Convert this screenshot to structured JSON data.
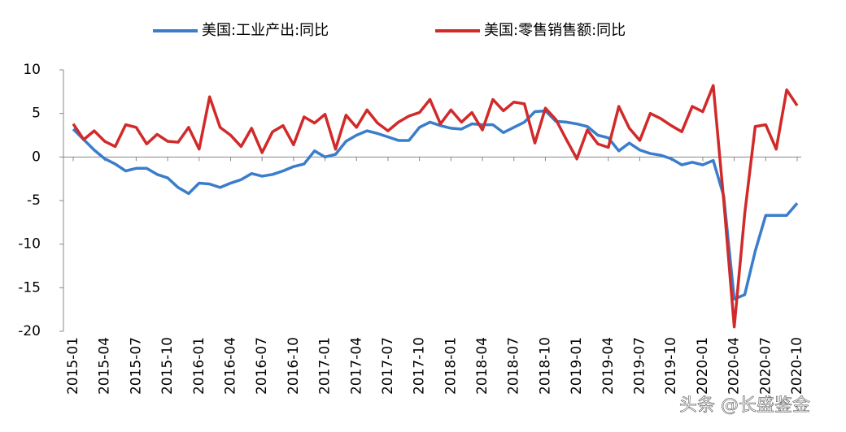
{
  "chart_data": {
    "type": "line",
    "categories": [
      "2015-01",
      null,
      null,
      "2015-04",
      null,
      null,
      "2015-07",
      null,
      null,
      "2015-10",
      null,
      null,
      "2016-01",
      null,
      null,
      "2016-04",
      null,
      null,
      "2016-07",
      null,
      null,
      "2016-10",
      null,
      null,
      "2017-01",
      null,
      null,
      "2017-04",
      null,
      null,
      "2017-07",
      null,
      null,
      "2017-10",
      null,
      null,
      "2018-01",
      null,
      null,
      "2018-04",
      null,
      null,
      "2018-07",
      null,
      null,
      "2018-10",
      null,
      null,
      "2019-01",
      null,
      null,
      "2019-04",
      null,
      null,
      "2019-07",
      null,
      null,
      "2019-10",
      null,
      null,
      "2020-01",
      null,
      null,
      "2020-04",
      null,
      null,
      "2020-07",
      null,
      null,
      "2020-10"
    ],
    "series": [
      {
        "name": "美国:工业产出:同比",
        "color": "#3a7dcb",
        "values": [
          3.2,
          2.0,
          0.8,
          -0.2,
          -0.8,
          -1.6,
          -1.3,
          -1.3,
          -2.0,
          -2.4,
          -3.5,
          -4.2,
          -3.0,
          -3.1,
          -3.5,
          -3.0,
          -2.6,
          -1.9,
          -2.2,
          -2.0,
          -1.6,
          -1.1,
          -0.8,
          0.7,
          0.0,
          0.3,
          1.8,
          2.5,
          3.0,
          2.7,
          2.3,
          1.9,
          1.9,
          3.4,
          4.0,
          3.6,
          3.3,
          3.2,
          3.8,
          3.7,
          3.7,
          2.8,
          3.4,
          4.0,
          5.2,
          5.3,
          4.1,
          4.0,
          3.8,
          3.5,
          2.5,
          2.2,
          0.7,
          1.6,
          0.8,
          0.4,
          0.2,
          -0.2,
          -0.9,
          -0.6,
          -0.9,
          -0.4,
          -4.5,
          -16.3,
          -15.8,
          -10.8,
          -6.7,
          -6.7,
          -6.7,
          -5.3
        ]
      },
      {
        "name": "美国:零售销售额:同比",
        "color": "#d12a2a",
        "values": [
          3.8,
          2.0,
          3.0,
          1.8,
          1.2,
          3.7,
          3.4,
          1.5,
          2.6,
          1.8,
          1.7,
          3.4,
          0.9,
          6.9,
          3.4,
          2.5,
          1.2,
          3.3,
          0.5,
          2.9,
          3.6,
          1.4,
          4.6,
          3.9,
          4.9,
          0.9,
          4.8,
          3.4,
          5.4,
          3.9,
          3.0,
          4.0,
          4.7,
          5.1,
          6.6,
          3.8,
          5.4,
          4.0,
          5.1,
          3.1,
          6.6,
          5.3,
          6.3,
          6.1,
          1.6,
          5.6,
          4.3,
          2.0,
          -0.2,
          3.1,
          1.5,
          1.1,
          5.8,
          3.3,
          1.9,
          5.0,
          4.4,
          3.6,
          2.9,
          5.8,
          5.2,
          8.2,
          -5.0,
          -19.5,
          -6.5,
          3.5,
          3.7,
          0.9,
          7.7,
          5.9
        ]
      }
    ],
    "ylim": [
      -20,
      10
    ],
    "yticks": [
      -20,
      -15,
      -10,
      -5,
      0,
      5,
      10
    ],
    "watermark": "头条 @长盛鉴金"
  }
}
